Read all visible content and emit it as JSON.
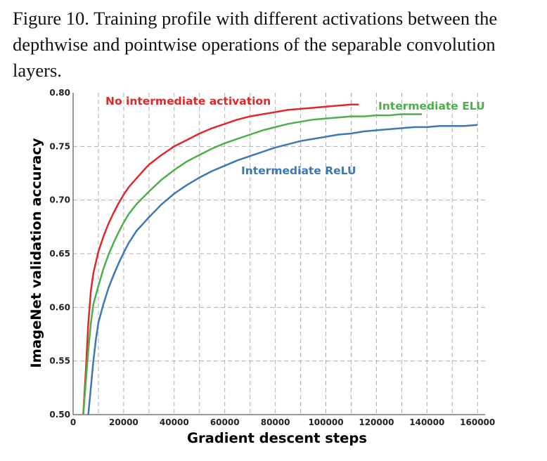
{
  "caption": "Figure 10. Training profile with different activations between the depthwise and pointwise operations of the separable convolution layers.",
  "chart_data": {
    "type": "line",
    "title": "",
    "xlabel": "Gradient descent steps",
    "ylabel": "ImageNet validation accuracy",
    "xlim": [
      0,
      163000
    ],
    "ylim": [
      0.5,
      0.8
    ],
    "grid": true,
    "x_ticks": [
      0,
      20000,
      40000,
      60000,
      80000,
      100000,
      120000,
      140000,
      160000
    ],
    "x_tick_labels": [
      "0",
      "20000",
      "40000",
      "60000",
      "80000",
      "100000",
      "120000",
      "140000",
      "160000"
    ],
    "y_ticks": [
      0.5,
      0.55,
      0.6,
      0.65,
      0.7,
      0.75,
      0.8
    ],
    "y_tick_labels": [
      "0.50",
      "0.55",
      "0.60",
      "0.65",
      "0.70",
      "0.75",
      "0.80"
    ],
    "series": [
      {
        "name": "No intermediate activation",
        "color": "#e0282a",
        "points": [
          [
            4000,
            0.5
          ],
          [
            5000,
            0.54
          ],
          [
            6000,
            0.585
          ],
          [
            7000,
            0.615
          ],
          [
            8000,
            0.632
          ],
          [
            10000,
            0.652
          ],
          [
            12000,
            0.666
          ],
          [
            14000,
            0.678
          ],
          [
            16000,
            0.688
          ],
          [
            18000,
            0.697
          ],
          [
            20000,
            0.705
          ],
          [
            22000,
            0.712
          ],
          [
            25000,
            0.72
          ],
          [
            28000,
            0.728
          ],
          [
            30000,
            0.733
          ],
          [
            35000,
            0.742
          ],
          [
            40000,
            0.75
          ],
          [
            45000,
            0.756
          ],
          [
            50000,
            0.762
          ],
          [
            55000,
            0.767
          ],
          [
            60000,
            0.771
          ],
          [
            65000,
            0.775
          ],
          [
            70000,
            0.778
          ],
          [
            75000,
            0.78
          ],
          [
            80000,
            0.782
          ],
          [
            85000,
            0.784
          ],
          [
            90000,
            0.785
          ],
          [
            95000,
            0.786
          ],
          [
            100000,
            0.787
          ],
          [
            105000,
            0.788
          ],
          [
            110000,
            0.789
          ],
          [
            113000,
            0.789
          ]
        ]
      },
      {
        "name": "Intermediate ELU",
        "color": "#4daf4a",
        "points": [
          [
            4000,
            0.5
          ],
          [
            5000,
            0.53
          ],
          [
            6000,
            0.56
          ],
          [
            7000,
            0.585
          ],
          [
            8000,
            0.603
          ],
          [
            10000,
            0.62
          ],
          [
            12000,
            0.636
          ],
          [
            14000,
            0.649
          ],
          [
            16000,
            0.66
          ],
          [
            18000,
            0.67
          ],
          [
            20000,
            0.679
          ],
          [
            22000,
            0.687
          ],
          [
            25000,
            0.696
          ],
          [
            30000,
            0.708
          ],
          [
            35000,
            0.719
          ],
          [
            40000,
            0.728
          ],
          [
            45000,
            0.736
          ],
          [
            50000,
            0.742
          ],
          [
            55000,
            0.748
          ],
          [
            60000,
            0.753
          ],
          [
            65000,
            0.757
          ],
          [
            70000,
            0.761
          ],
          [
            75000,
            0.765
          ],
          [
            80000,
            0.768
          ],
          [
            85000,
            0.771
          ],
          [
            90000,
            0.773
          ],
          [
            95000,
            0.775
          ],
          [
            100000,
            0.776
          ],
          [
            105000,
            0.777
          ],
          [
            110000,
            0.778
          ],
          [
            115000,
            0.778
          ],
          [
            120000,
            0.779
          ],
          [
            125000,
            0.779
          ],
          [
            130000,
            0.78
          ],
          [
            135000,
            0.78
          ],
          [
            138000,
            0.78
          ]
        ]
      },
      {
        "name": "Intermediate ReLU",
        "color": "#3b78b5",
        "points": [
          [
            6000,
            0.5
          ],
          [
            7000,
            0.525
          ],
          [
            8000,
            0.55
          ],
          [
            9000,
            0.57
          ],
          [
            10000,
            0.586
          ],
          [
            12000,
            0.603
          ],
          [
            14000,
            0.618
          ],
          [
            16000,
            0.63
          ],
          [
            18000,
            0.641
          ],
          [
            20000,
            0.651
          ],
          [
            22000,
            0.66
          ],
          [
            25000,
            0.671
          ],
          [
            30000,
            0.684
          ],
          [
            35000,
            0.696
          ],
          [
            40000,
            0.706
          ],
          [
            45000,
            0.714
          ],
          [
            50000,
            0.721
          ],
          [
            55000,
            0.727
          ],
          [
            60000,
            0.732
          ],
          [
            65000,
            0.737
          ],
          [
            70000,
            0.741
          ],
          [
            75000,
            0.745
          ],
          [
            80000,
            0.749
          ],
          [
            85000,
            0.752
          ],
          [
            90000,
            0.755
          ],
          [
            95000,
            0.757
          ],
          [
            100000,
            0.759
          ],
          [
            105000,
            0.761
          ],
          [
            110000,
            0.762
          ],
          [
            115000,
            0.764
          ],
          [
            120000,
            0.765
          ],
          [
            125000,
            0.766
          ],
          [
            130000,
            0.767
          ],
          [
            135000,
            0.768
          ],
          [
            140000,
            0.768
          ],
          [
            145000,
            0.769
          ],
          [
            150000,
            0.769
          ],
          [
            155000,
            0.769
          ],
          [
            160000,
            0.77
          ]
        ]
      }
    ],
    "annotations": [
      {
        "text": "No intermediate activation",
        "color": "#e0282a"
      },
      {
        "text": "Intermediate ELU",
        "color": "#4daf4a"
      },
      {
        "text": "Intermediate ReLU",
        "color": "#3b78b5"
      }
    ]
  }
}
